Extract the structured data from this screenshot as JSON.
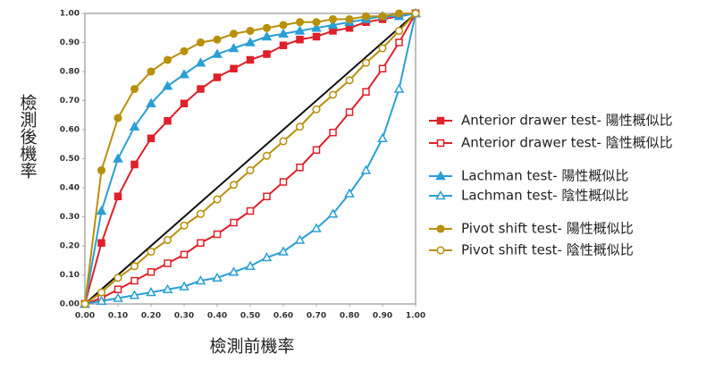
{
  "chart_data": {
    "type": "line",
    "xlabel": "檢測前機率",
    "ylabel": "檢測後機率",
    "x": [
      0,
      0.05,
      0.1,
      0.15,
      0.2,
      0.25,
      0.3,
      0.35,
      0.4,
      0.45,
      0.5,
      0.55,
      0.6,
      0.65,
      0.7,
      0.75,
      0.8,
      0.85,
      0.9,
      0.95,
      1
    ],
    "xlim": [
      0,
      1
    ],
    "ylim": [
      0,
      1
    ],
    "xticks": [
      {
        "value": 0,
        "label": "0.00"
      },
      {
        "value": 0.1,
        "label": "0.10"
      },
      {
        "value": 0.2,
        "label": "0.20"
      },
      {
        "value": 0.3,
        "label": "0.30"
      },
      {
        "value": 0.4,
        "label": "0.40"
      },
      {
        "value": 0.5,
        "label": "0.50"
      },
      {
        "value": 0.6,
        "label": "0.60"
      },
      {
        "value": 0.7,
        "label": "0.70"
      },
      {
        "value": 0.8,
        "label": "0.80"
      },
      {
        "value": 0.9,
        "label": "0.90"
      },
      {
        "value": 1,
        "label": "1.00"
      }
    ],
    "yticks": [
      {
        "value": 0,
        "label": "0.00"
      },
      {
        "value": 0.1,
        "label": "0.10"
      },
      {
        "value": 0.2,
        "label": "0.20"
      },
      {
        "value": 0.3,
        "label": "0.30"
      },
      {
        "value": 0.4,
        "label": "0.40"
      },
      {
        "value": 0.5,
        "label": "0.50"
      },
      {
        "value": 0.6,
        "label": "0.60"
      },
      {
        "value": 0.7,
        "label": "0.70"
      },
      {
        "value": 0.8,
        "label": "0.80"
      },
      {
        "value": 0.9,
        "label": "0.90"
      },
      {
        "value": 1,
        "label": "1.00"
      }
    ],
    "series": [
      {
        "name": "Anterior drawer test- 陽性概似比",
        "color": "#e0202a",
        "marker": "square",
        "filled": true,
        "values": [
          0,
          0.21,
          0.37,
          0.48,
          0.57,
          0.63,
          0.69,
          0.74,
          0.78,
          0.81,
          0.84,
          0.86,
          0.89,
          0.91,
          0.92,
          0.94,
          0.95,
          0.97,
          0.98,
          0.99,
          1
        ]
      },
      {
        "name": "Anterior drawer test- 陰性概似比",
        "color": "#e0202a",
        "marker": "square",
        "filled": false,
        "values": [
          0,
          0.02,
          0.05,
          0.08,
          0.11,
          0.14,
          0.17,
          0.21,
          0.24,
          0.28,
          0.32,
          0.37,
          0.42,
          0.47,
          0.53,
          0.59,
          0.66,
          0.73,
          0.81,
          0.9,
          1
        ]
      },
      {
        "name": "Lachman test- 陽性概似比",
        "color": "#2a9fd6",
        "marker": "triangle",
        "filled": true,
        "values": [
          0,
          0.32,
          0.5,
          0.61,
          0.69,
          0.75,
          0.79,
          0.83,
          0.86,
          0.88,
          0.9,
          0.92,
          0.93,
          0.94,
          0.95,
          0.96,
          0.97,
          0.98,
          0.99,
          0.99,
          1
        ]
      },
      {
        "name": "Lachman test- 陰性概似比",
        "color": "#2a9fd6",
        "marker": "triangle",
        "filled": false,
        "values": [
          0,
          0.01,
          0.02,
          0.03,
          0.04,
          0.05,
          0.06,
          0.08,
          0.09,
          0.11,
          0.13,
          0.16,
          0.18,
          0.22,
          0.26,
          0.31,
          0.38,
          0.46,
          0.57,
          0.74,
          1
        ]
      },
      {
        "name": "Pivot shift test- 陽性概似比",
        "color": "#b8900a",
        "marker": "circle",
        "filled": true,
        "values": [
          0,
          0.46,
          0.64,
          0.74,
          0.8,
          0.84,
          0.87,
          0.9,
          0.91,
          0.93,
          0.94,
          0.95,
          0.96,
          0.97,
          0.97,
          0.98,
          0.98,
          0.99,
          0.99,
          1,
          1
        ]
      },
      {
        "name": "Pivot shift test- 陰性概似比",
        "color": "#b8900a",
        "marker": "circle",
        "filled": false,
        "values": [
          0,
          0.04,
          0.09,
          0.13,
          0.18,
          0.22,
          0.27,
          0.31,
          0.36,
          0.41,
          0.46,
          0.51,
          0.56,
          0.61,
          0.67,
          0.72,
          0.77,
          0.83,
          0.88,
          0.94,
          1
        ]
      }
    ]
  }
}
